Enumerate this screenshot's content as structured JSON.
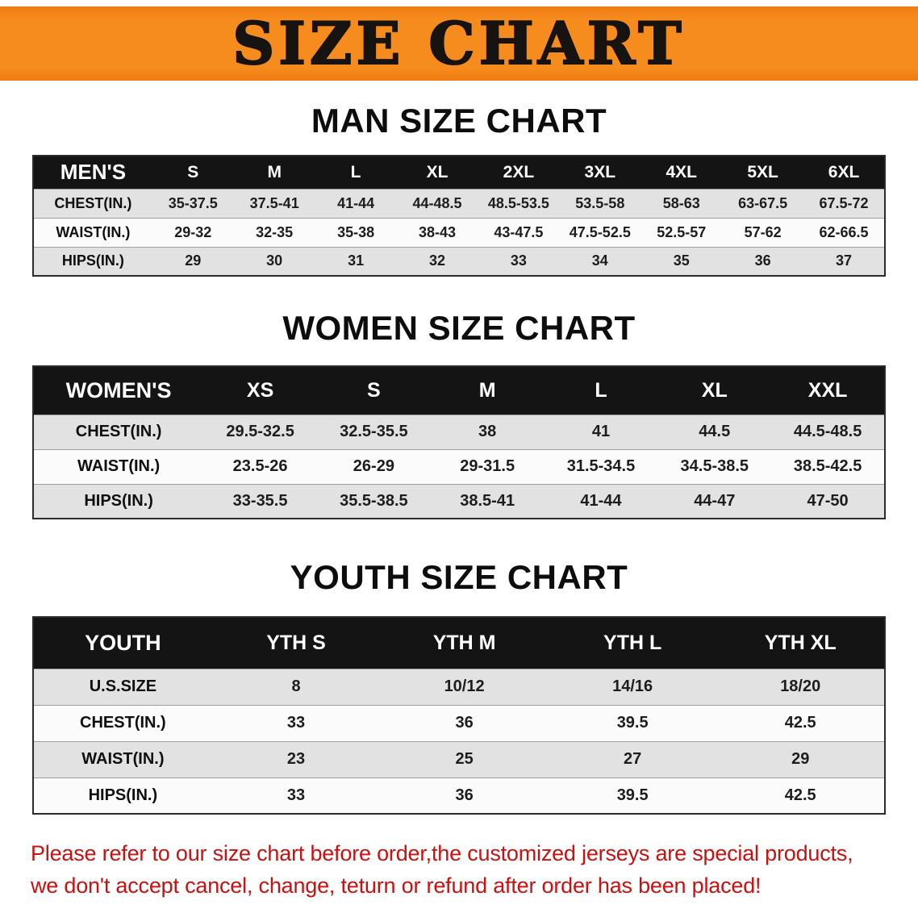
{
  "banner": {
    "title": "SIZE CHART",
    "bg_color": "#F78C1E",
    "text_color": "#161310"
  },
  "men": {
    "heading": "MAN SIZE CHART",
    "table": {
      "header": [
        "MEN'S",
        "S",
        "M",
        "L",
        "XL",
        "2XL",
        "3XL",
        "4XL",
        "5XL",
        "6XL"
      ],
      "rows": [
        [
          "CHEST(IN.)",
          "35-37.5",
          "37.5-41",
          "41-44",
          "44-48.5",
          "48.5-53.5",
          "53.5-58",
          "58-63",
          "63-67.5",
          "67.5-72"
        ],
        [
          "WAIST(IN.)",
          "29-32",
          "32-35",
          "35-38",
          "38-43",
          "43-47.5",
          "47.5-52.5",
          "52.5-57",
          "57-62",
          "62-66.5"
        ],
        [
          "HIPS(IN.)",
          "29",
          "30",
          "31",
          "32",
          "33",
          "34",
          "35",
          "36",
          "37"
        ]
      ]
    }
  },
  "women": {
    "heading": "WOMEN SIZE CHART",
    "table": {
      "header": [
        "WOMEN'S",
        "XS",
        "S",
        "M",
        "L",
        "XL",
        "XXL"
      ],
      "rows": [
        [
          "CHEST(IN.)",
          "29.5-32.5",
          "32.5-35.5",
          "38",
          "41",
          "44.5",
          "44.5-48.5"
        ],
        [
          "WAIST(IN.)",
          "23.5-26",
          "26-29",
          "29-31.5",
          "31.5-34.5",
          "34.5-38.5",
          "38.5-42.5"
        ],
        [
          "HIPS(IN.)",
          "33-35.5",
          "35.5-38.5",
          "38.5-41",
          "41-44",
          "44-47",
          "47-50"
        ]
      ]
    }
  },
  "youth": {
    "heading": "YOUTH SIZE CHART",
    "table": {
      "header": [
        "YOUTH",
        "YTH S",
        "YTH M",
        "YTH L",
        "YTH XL"
      ],
      "rows": [
        [
          "U.S.SIZE",
          "8",
          "10/12",
          "14/16",
          "18/20"
        ],
        [
          "CHEST(IN.)",
          "33",
          "36",
          "39.5",
          "42.5"
        ],
        [
          "WAIST(IN.)",
          "23",
          "25",
          "27",
          "29"
        ],
        [
          "HIPS(IN.)",
          "33",
          "36",
          "39.5",
          "42.5"
        ]
      ]
    }
  },
  "footer": {
    "line1": "Please refer to our size chart before order,the customized jerseys are special products,",
    "line2": "we don't accept cancel, change, teturn or refund after order has been placed!",
    "color": "#cf0e0e"
  }
}
